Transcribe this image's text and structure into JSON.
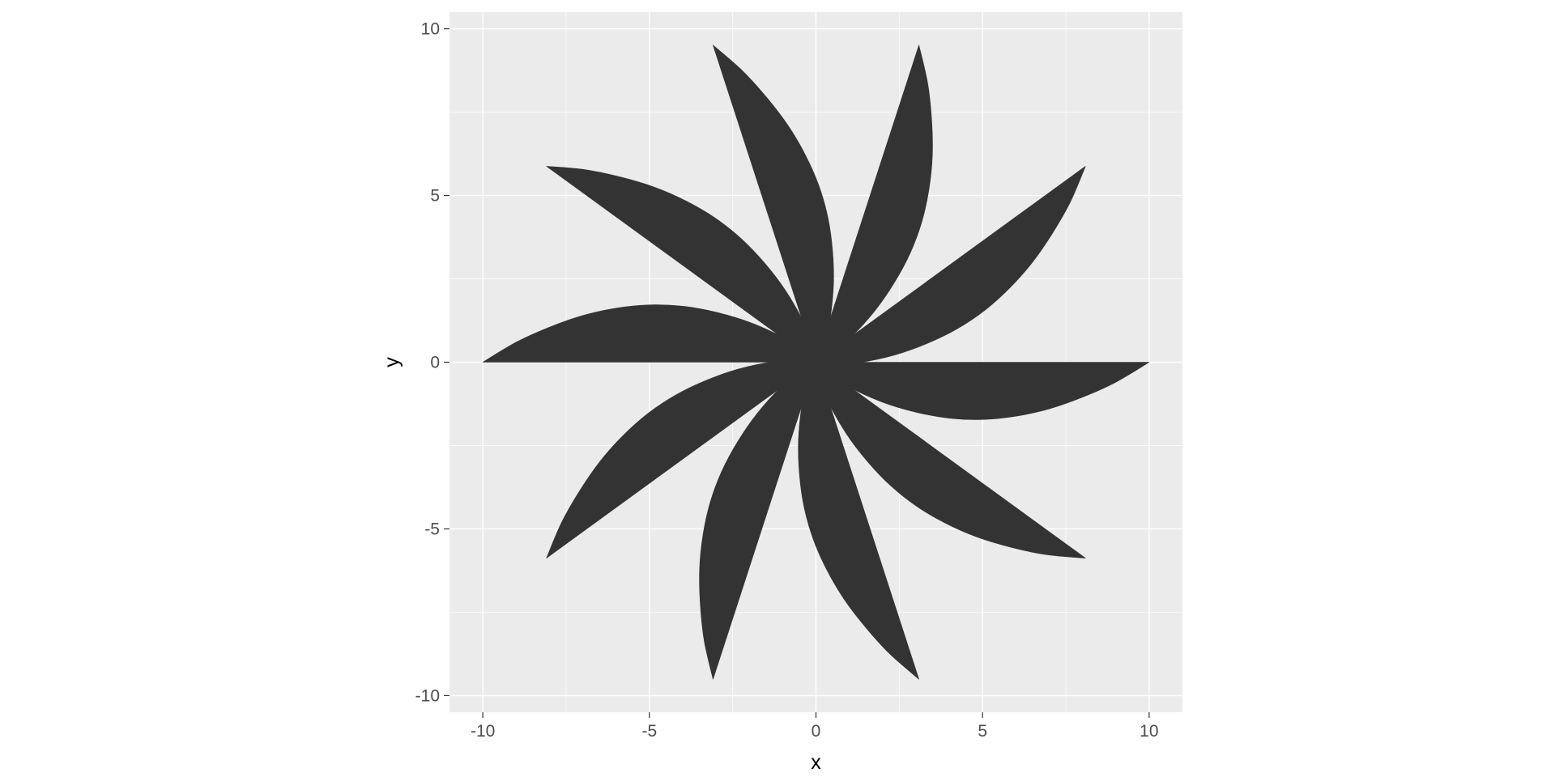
{
  "chart_data": {
    "type": "area",
    "title": "",
    "xlabel": "x",
    "ylabel": "y",
    "xlim": [
      -11,
      11
    ],
    "ylim": [
      -10.5,
      10.5
    ],
    "x_major_ticks": [
      -10,
      -5,
      0,
      5,
      10
    ],
    "y_major_ticks": [
      -10,
      -5,
      0,
      5,
      10
    ],
    "x_tick_labels": [
      "-10",
      "-5",
      "0",
      "5",
      "10"
    ],
    "y_tick_labels": [
      "-10",
      "-5",
      "0",
      "5",
      "10"
    ],
    "grid": true,
    "legend": "none",
    "fill_color": "#333333",
    "panel_color": "#ebebeb",
    "shape": {
      "description_values": "ten curved blades rotated about the origin",
      "blade_count": 10,
      "blade_tip_radius": 10,
      "blade_max_bulge": 1.75,
      "base_blade_outline": [
        [
          0,
          0
        ],
        [
          10,
          0
        ],
        [
          9,
          -0.6
        ],
        [
          8,
          -1.05
        ],
        [
          7,
          -1.4
        ],
        [
          6,
          -1.62
        ],
        [
          5,
          -1.72
        ],
        [
          4,
          -1.68
        ],
        [
          3,
          -1.5
        ],
        [
          2,
          -1.2
        ],
        [
          1,
          -0.75
        ],
        [
          0.4,
          -0.35
        ],
        [
          0,
          0
        ]
      ]
    }
  }
}
